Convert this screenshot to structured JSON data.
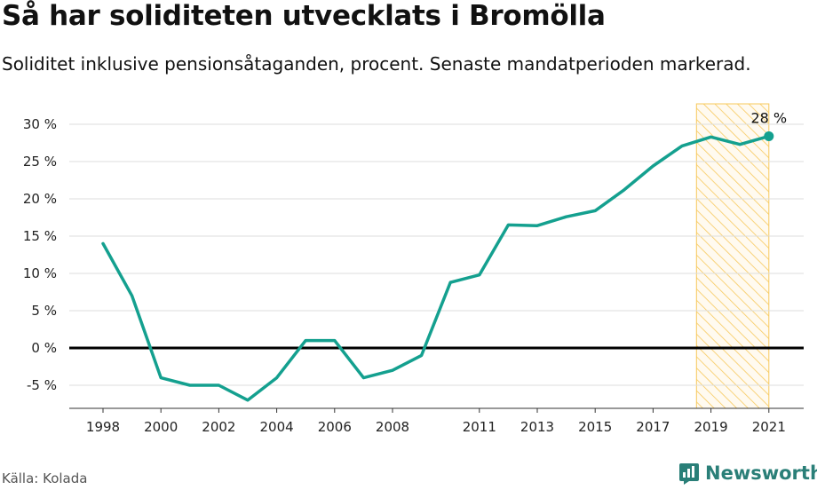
{
  "title": "Så har soliditeten utvecklats i Bromölla",
  "subtitle": "Soliditet inklusive pensionsåtaganden, procent. Senaste mandatperioden markerad.",
  "source": "Källa: Kolada",
  "brand": "Newsworthy",
  "colors": {
    "line": "#14a08f",
    "highlight": "#f7c95c",
    "zero_line": "#000000",
    "grid": "#dddddd",
    "brand": "#2a7f78"
  },
  "chart_data": {
    "type": "line",
    "x": [
      1998,
      1999,
      2000,
      2001,
      2002,
      2003,
      2004,
      2005,
      2006,
      2007,
      2008,
      2009,
      2010,
      2011,
      2012,
      2013,
      2014,
      2015,
      2016,
      2017,
      2018,
      2019,
      2020,
      2021
    ],
    "series": [
      {
        "values": [
          14,
          7,
          -4,
          -5,
          -5,
          -7,
          -4,
          1,
          1,
          -4,
          -3,
          -1,
          8.8,
          9.8,
          16.5,
          16.4,
          17.6,
          18.4,
          21.2,
          24.4,
          27.1,
          28.3,
          27.3,
          28.4
        ]
      }
    ],
    "x_ticks": [
      "1998",
      "2000",
      "2002",
      "2004",
      "2006",
      "2008",
      "2011",
      "2013",
      "2015",
      "2017",
      "2019",
      "2021"
    ],
    "y_ticks": [
      "30 %",
      "25 %",
      "20 %",
      "15 %",
      "10 %",
      "5 %",
      "0 %",
      "-5 %"
    ],
    "y_tick_values": [
      30,
      25,
      20,
      15,
      10,
      5,
      0,
      -5
    ],
    "xlim": [
      1997,
      2022.5
    ],
    "ylim": [
      -8,
      32
    ],
    "highlight_range": [
      2018.5,
      2021
    ],
    "end_label": "28 %",
    "grid": true
  }
}
